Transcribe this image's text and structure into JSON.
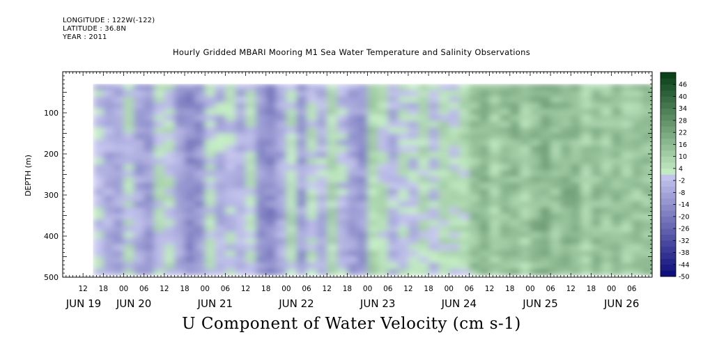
{
  "header": {
    "longitude": "LONGITUDE : 122W(-122)",
    "latitude": "LATITUDE : 36.8N",
    "year": "YEAR : 2011"
  },
  "chart_data": {
    "type": "heatmap",
    "title": "Hourly Gridded MBARI Mooring M1 Sea Water Temperature and Salinity Observations",
    "bottom_title": "U Component of Water Velocity (cm s-1)",
    "ylabel": "DEPTH (m)",
    "ylim": [
      500,
      0
    ],
    "yticks": [
      100,
      200,
      300,
      400,
      500
    ],
    "x_hour_ticks": [
      "12",
      "18",
      "00",
      "06",
      "12",
      "18",
      "00",
      "06",
      "12",
      "18",
      "00",
      "06",
      "12",
      "18",
      "00",
      "06",
      "12",
      "18",
      "00",
      "06",
      "12",
      "18",
      "00",
      "06",
      "12",
      "18",
      "00",
      "06"
    ],
    "x_day_labels": [
      "JUN 19",
      "JUN 20",
      "JUN 21",
      "JUN 22",
      "JUN 23",
      "JUN 24",
      "JUN 25",
      "JUN 26"
    ],
    "colorbar": {
      "tick_labels": [
        "46",
        "40",
        "34",
        "28",
        "22",
        "16",
        "10",
        "4",
        "-2",
        "-8",
        "-14",
        "-20",
        "-26",
        "-32",
        "-38",
        "-44",
        "-50"
      ],
      "min": -50,
      "max": 52
    },
    "data_depth_range": [
      20,
      485
    ],
    "data_time_range": [
      "JUN 19 15:00",
      "JUN 26 13:00"
    ],
    "period_means": [
      {
        "start": "JUN 19 15:00",
        "u": -2
      },
      {
        "start": "JUN 19 18:00",
        "u": -6
      },
      {
        "start": "JUN 19 21:00",
        "u": -8
      },
      {
        "start": "JUN 20 00:00",
        "u": 2
      },
      {
        "start": "JUN 20 03:00",
        "u": -8
      },
      {
        "start": "JUN 20 06:00",
        "u": -12
      },
      {
        "start": "JUN 20 09:00",
        "u": 3
      },
      {
        "start": "JUN 20 12:00",
        "u": 2
      },
      {
        "start": "JUN 20 15:00",
        "u": -10
      },
      {
        "start": "JUN 20 18:00",
        "u": -16
      },
      {
        "start": "JUN 20 21:00",
        "u": -12
      },
      {
        "start": "JUN 21 00:00",
        "u": 1
      },
      {
        "start": "JUN 21 03:00",
        "u": -4
      },
      {
        "start": "JUN 21 06:00",
        "u": 0
      },
      {
        "start": "JUN 21 09:00",
        "u": -6
      },
      {
        "start": "JUN 21 12:00",
        "u": 2
      },
      {
        "start": "JUN 21 15:00",
        "u": -12
      },
      {
        "start": "JUN 21 18:00",
        "u": -16
      },
      {
        "start": "JUN 21 21:00",
        "u": -8
      },
      {
        "start": "JUN 22 00:00",
        "u": 4
      },
      {
        "start": "JUN 22 03:00",
        "u": -10
      },
      {
        "start": "JUN 22 06:00",
        "u": 2
      },
      {
        "start": "JUN 22 09:00",
        "u": -4
      },
      {
        "start": "JUN 22 12:00",
        "u": 6
      },
      {
        "start": "JUN 22 15:00",
        "u": -2
      },
      {
        "start": "JUN 22 18:00",
        "u": -8
      },
      {
        "start": "JUN 22 21:00",
        "u": -12
      },
      {
        "start": "JUN 23 00:00",
        "u": 8
      },
      {
        "start": "JUN 23 03:00",
        "u": 4
      },
      {
        "start": "JUN 23 06:00",
        "u": -4
      },
      {
        "start": "JUN 23 09:00",
        "u": 2
      },
      {
        "start": "JUN 23 12:00",
        "u": -2
      },
      {
        "start": "JUN 23 15:00",
        "u": 6
      },
      {
        "start": "JUN 23 18:00",
        "u": -2
      },
      {
        "start": "JUN 23 21:00",
        "u": 5
      },
      {
        "start": "JUN 24 00:00",
        "u": 3
      },
      {
        "start": "JUN 24 03:00",
        "u": 6
      },
      {
        "start": "JUN 24 06:00",
        "u": 14
      },
      {
        "start": "JUN 24 09:00",
        "u": 16
      },
      {
        "start": "JUN 24 12:00",
        "u": 10
      },
      {
        "start": "JUN 24 15:00",
        "u": 14
      },
      {
        "start": "JUN 24 18:00",
        "u": 16
      },
      {
        "start": "JUN 24 21:00",
        "u": 10
      },
      {
        "start": "JUN 25 00:00",
        "u": 16
      },
      {
        "start": "JUN 25 03:00",
        "u": 18
      },
      {
        "start": "JUN 25 06:00",
        "u": 14
      },
      {
        "start": "JUN 25 09:00",
        "u": 18
      },
      {
        "start": "JUN 25 12:00",
        "u": 16
      },
      {
        "start": "JUN 25 15:00",
        "u": 10
      },
      {
        "start": "JUN 25 18:00",
        "u": 14
      },
      {
        "start": "JUN 25 21:00",
        "u": 12
      },
      {
        "start": "JUN 26 00:00",
        "u": 14
      },
      {
        "start": "JUN 26 03:00",
        "u": 10
      },
      {
        "start": "JUN 26 06:00",
        "u": 12
      },
      {
        "start": "JUN 26 09:00",
        "u": 14
      },
      {
        "start": "JUN 26 12:00",
        "u": 12
      }
    ]
  }
}
